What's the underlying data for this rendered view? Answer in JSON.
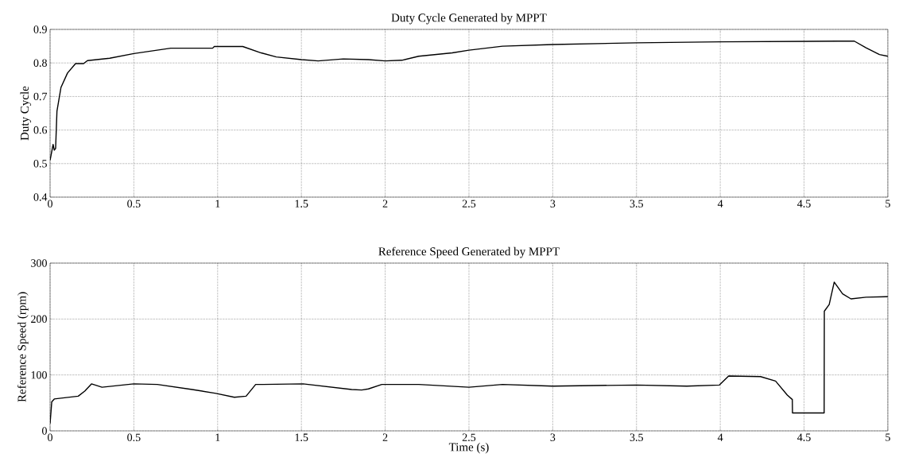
{
  "chart_data": [
    {
      "type": "line",
      "title": "Duty Cycle Generated by MPPT",
      "ylabel": "Duty Cycle",
      "xlim": [
        0,
        5
      ],
      "ylim": [
        0.4,
        0.9
      ],
      "xticks": [
        0,
        0.5,
        1,
        1.5,
        2,
        2.5,
        3,
        3.5,
        4,
        4.5,
        5
      ],
      "yticks": [
        0.4,
        0.5,
        0.6,
        0.7,
        0.8,
        0.9
      ],
      "grid": true,
      "series": [
        {
          "color": "#000000",
          "line_style": "solid",
          "x": [
            0,
            0.018,
            0.025,
            0.033,
            0.041,
            0.065,
            0.104,
            0.152,
            0.2,
            0.223,
            0.356,
            0.5,
            0.72,
            0.97,
            0.98,
            1.15,
            1.26,
            1.35,
            1.5,
            1.6,
            1.75,
            1.9,
            2.0,
            2.1,
            2.2,
            2.4,
            2.5,
            2.7,
            3.0,
            3.5,
            4.0,
            4.7,
            4.8,
            4.87,
            4.95,
            5.0
          ],
          "values": [
            0.51,
            0.557,
            0.54,
            0.545,
            0.656,
            0.727,
            0.77,
            0.798,
            0.798,
            0.807,
            0.814,
            0.828,
            0.844,
            0.844,
            0.849,
            0.849,
            0.83,
            0.818,
            0.81,
            0.806,
            0.812,
            0.81,
            0.806,
            0.808,
            0.82,
            0.83,
            0.838,
            0.85,
            0.855,
            0.86,
            0.863,
            0.865,
            0.865,
            0.845,
            0.825,
            0.82
          ]
        }
      ]
    },
    {
      "type": "line",
      "title": "Reference Speed Generated by MPPT",
      "ylabel": "Reference Speed (rpm)",
      "xlabel": "Time (s)",
      "xlim": [
        0,
        5
      ],
      "ylim": [
        0,
        300
      ],
      "xticks": [
        0,
        0.5,
        1,
        1.5,
        2,
        2.5,
        3,
        3.5,
        4,
        4.5,
        5
      ],
      "yticks": [
        0,
        100,
        200,
        300
      ],
      "grid": true,
      "series": [
        {
          "color": "#000000",
          "line_style": "solid",
          "x": [
            0,
            0.01,
            0.025,
            0.168,
            0.207,
            0.247,
            0.31,
            0.5,
            0.64,
            0.848,
            0.99,
            1.1,
            1.17,
            1.227,
            1.27,
            1.51,
            1.8,
            1.86,
            1.9,
            1.98,
            2.2,
            2.5,
            2.7,
            3.0,
            3.5,
            3.8,
            3.995,
            4.05,
            4.24,
            4.33,
            4.4,
            4.43,
            4.431,
            4.62,
            4.621,
            4.65,
            4.68,
            4.73,
            4.78,
            4.87,
            4.99,
            5.0
          ],
          "values": [
            13,
            52,
            57,
            62,
            71,
            84,
            78,
            84,
            83,
            74,
            67,
            60,
            62,
            83,
            83,
            84,
            74,
            73,
            75,
            83,
            83,
            78,
            83,
            80,
            82,
            80,
            82,
            98,
            97,
            89,
            64,
            56,
            32,
            32,
            214,
            226,
            266,
            245,
            236,
            239,
            240,
            240
          ]
        }
      ]
    }
  ]
}
